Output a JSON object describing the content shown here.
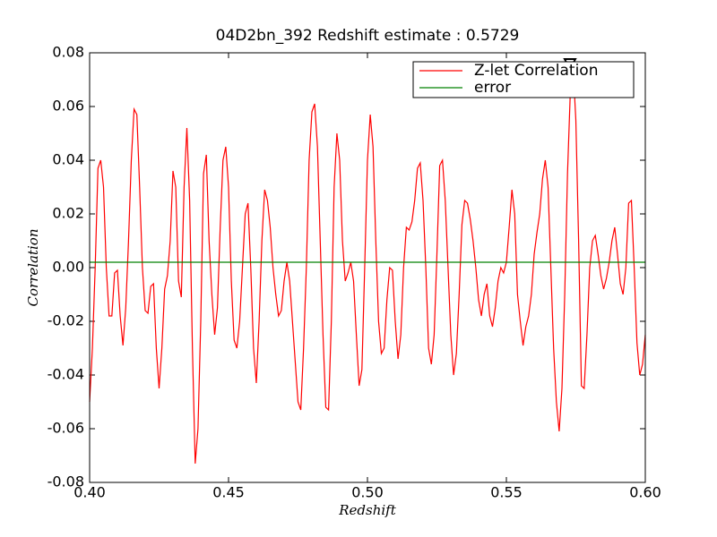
{
  "chart_data": {
    "type": "line",
    "title": "04D2bn_392 Redshift estimate : 0.5729",
    "x_label": "Redshift",
    "y_label": "Correlation",
    "xlim": [
      0.4,
      0.6
    ],
    "xticks": [
      {
        "value": 0.4,
        "label": "0.40"
      },
      0.45,
      {
        "value": 0.5,
        "label": "0.50"
      },
      0.55,
      {
        "value": 0.6,
        "label": "0.60"
      }
    ],
    "ylim": [
      -0.08,
      0.08
    ],
    "yticks": [
      -0.08,
      -0.06,
      -0.04,
      -0.02,
      {
        "value": 0,
        "label": "0.00"
      },
      0.02,
      0.04,
      0.06,
      0.08
    ],
    "legend": "upper right",
    "series": [
      {
        "name": "Z-let Correlation",
        "color": "#ff0000",
        "x": [
          0.4,
          0.401,
          0.402,
          0.403,
          0.404,
          0.405,
          0.406,
          0.407,
          0.408,
          0.409,
          0.41,
          0.411,
          0.412,
          0.413,
          0.414,
          0.415,
          0.416,
          0.417,
          0.418,
          0.419,
          0.42,
          0.421,
          0.422,
          0.423,
          0.424,
          0.425,
          0.426,
          0.427,
          0.428,
          0.429,
          0.43,
          0.431,
          0.432,
          0.433,
          0.434,
          0.435,
          0.436,
          0.437,
          0.438,
          0.439,
          0.44,
          0.441,
          0.442,
          0.443,
          0.444,
          0.445,
          0.446,
          0.447,
          0.448,
          0.449,
          0.45,
          0.451,
          0.452,
          0.453,
          0.454,
          0.455,
          0.456,
          0.457,
          0.458,
          0.459,
          0.46,
          0.461,
          0.462,
          0.463,
          0.464,
          0.465,
          0.466,
          0.467,
          0.468,
          0.469,
          0.47,
          0.471,
          0.472,
          0.473,
          0.474,
          0.475,
          0.476,
          0.477,
          0.478,
          0.479,
          0.48,
          0.481,
          0.482,
          0.483,
          0.484,
          0.485,
          0.486,
          0.487,
          0.488,
          0.489,
          0.49,
          0.491,
          0.492,
          0.493,
          0.494,
          0.495,
          0.496,
          0.497,
          0.498,
          0.499,
          0.5,
          0.501,
          0.502,
          0.503,
          0.504,
          0.505,
          0.506,
          0.507,
          0.508,
          0.509,
          0.51,
          0.511,
          0.512,
          0.513,
          0.514,
          0.515,
          0.516,
          0.517,
          0.518,
          0.519,
          0.52,
          0.521,
          0.522,
          0.523,
          0.524,
          0.525,
          0.526,
          0.527,
          0.528,
          0.529,
          0.53,
          0.531,
          0.532,
          0.533,
          0.534,
          0.535,
          0.536,
          0.537,
          0.538,
          0.539,
          0.54,
          0.541,
          0.542,
          0.543,
          0.544,
          0.545,
          0.546,
          0.547,
          0.548,
          0.549,
          0.55,
          0.551,
          0.552,
          0.553,
          0.554,
          0.555,
          0.556,
          0.557,
          0.558,
          0.559,
          0.56,
          0.561,
          0.562,
          0.563,
          0.564,
          0.565,
          0.566,
          0.567,
          0.568,
          0.569,
          0.57,
          0.571,
          0.572,
          0.573,
          0.574,
          0.575,
          0.576,
          0.577,
          0.578,
          0.579,
          0.58,
          0.581,
          0.582,
          0.583,
          0.584,
          0.585,
          0.586,
          0.587,
          0.588,
          0.589,
          0.59,
          0.591,
          0.592,
          0.593,
          0.594,
          0.595,
          0.596,
          0.597,
          0.598,
          0.599,
          0.6
        ],
        "values": [
          -0.05,
          -0.03,
          0.0,
          0.037,
          0.04,
          0.03,
          0.0,
          -0.018,
          -0.018,
          -0.002,
          -0.001,
          -0.018,
          -0.029,
          -0.015,
          0.01,
          0.04,
          0.059,
          0.057,
          0.03,
          0.0,
          -0.016,
          -0.017,
          -0.007,
          -0.006,
          -0.03,
          -0.045,
          -0.03,
          -0.008,
          -0.003,
          0.01,
          0.036,
          0.03,
          -0.005,
          -0.011,
          0.03,
          0.052,
          0.025,
          -0.03,
          -0.073,
          -0.06,
          -0.02,
          0.035,
          0.042,
          0.01,
          -0.01,
          -0.025,
          -0.015,
          0.015,
          0.04,
          0.045,
          0.03,
          -0.005,
          -0.027,
          -0.03,
          -0.02,
          0.0,
          0.02,
          0.024,
          0.0,
          -0.03,
          -0.043,
          -0.02,
          0.01,
          0.029,
          0.025,
          0.015,
          0.0,
          -0.01,
          -0.018,
          -0.016,
          -0.005,
          0.002,
          -0.005,
          -0.02,
          -0.035,
          -0.05,
          -0.053,
          -0.03,
          0.0,
          0.04,
          0.058,
          0.061,
          0.045,
          0.01,
          -0.025,
          -0.052,
          -0.053,
          -0.02,
          0.03,
          0.05,
          0.04,
          0.01,
          -0.005,
          -0.002,
          0.002,
          -0.005,
          -0.025,
          -0.044,
          -0.038,
          0.0,
          0.04,
          0.057,
          0.045,
          0.01,
          -0.02,
          -0.032,
          -0.03,
          -0.012,
          0.0,
          -0.001,
          -0.02,
          -0.034,
          -0.025,
          0.0,
          0.015,
          0.014,
          0.017,
          0.025,
          0.037,
          0.039,
          0.025,
          0.0,
          -0.03,
          -0.036,
          -0.025,
          0.005,
          0.038,
          0.04,
          0.025,
          0.0,
          -0.025,
          -0.04,
          -0.032,
          -0.01,
          0.016,
          0.025,
          0.024,
          0.018,
          0.01,
          0.0,
          -0.012,
          -0.018,
          -0.01,
          -0.006,
          -0.018,
          -0.022,
          -0.015,
          -0.005,
          0.0,
          -0.002,
          0.002,
          0.015,
          0.029,
          0.02,
          -0.01,
          -0.02,
          -0.029,
          -0.022,
          -0.018,
          -0.01,
          0.005,
          0.013,
          0.02,
          0.033,
          0.04,
          0.03,
          0.0,
          -0.03,
          -0.05,
          -0.061,
          -0.045,
          -0.01,
          0.035,
          0.065,
          0.075,
          0.055,
          0.01,
          -0.044,
          -0.045,
          -0.025,
          0.0,
          0.01,
          0.012,
          0.005,
          -0.003,
          -0.008,
          -0.004,
          0.002,
          0.01,
          0.015,
          0.005,
          -0.006,
          -0.01,
          0.0,
          0.024,
          0.025,
          0.0,
          -0.028,
          -0.04,
          -0.036,
          -0.025
        ]
      },
      {
        "name": "error",
        "color": "#008000",
        "x": [
          0.4,
          0.6
        ],
        "values": [
          0.002,
          0.002
        ]
      }
    ],
    "marker": {
      "x": 0.5729,
      "y": 0.075,
      "color": "#000000"
    }
  }
}
